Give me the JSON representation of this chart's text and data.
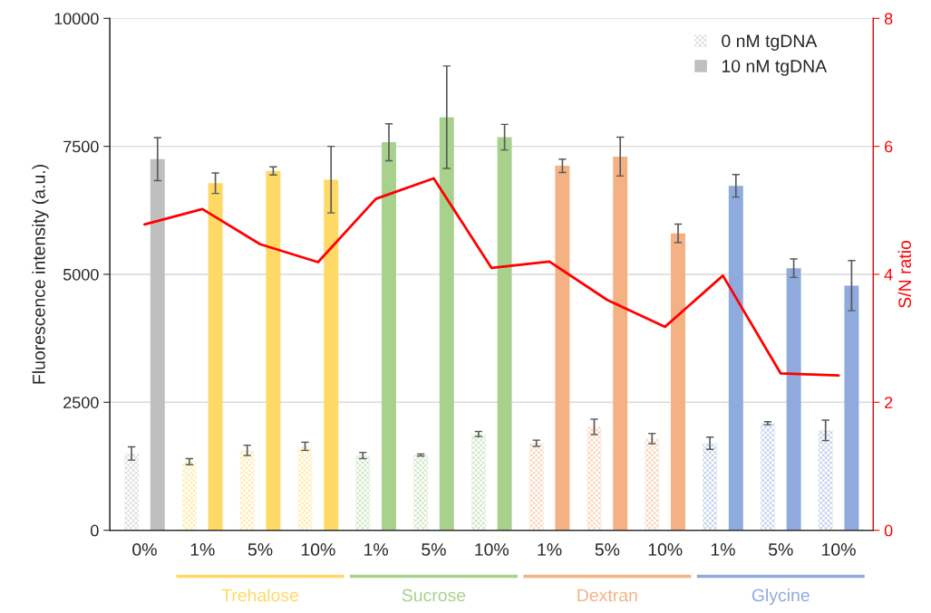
{
  "chart_data": {
    "type": "bar",
    "ylabel": "Fluorescence intensity (a.u.)",
    "y2label": "S/N ratio",
    "categories": [
      "0%",
      "1%",
      "5%",
      "10%",
      "1%",
      "5%",
      "10%",
      "1%",
      "5%",
      "10%",
      "1%",
      "5%",
      "10%"
    ],
    "series": [
      {
        "name": "0 nM tgDNA",
        "color": "#bfbfbf",
        "colors": [
          "#bfbfbf",
          "#ffd966",
          "#ffd966",
          "#ffd966",
          "#a9d18e",
          "#a9d18e",
          "#a9d18e",
          "#f4b183",
          "#f4b183",
          "#f4b183",
          "#8faadc",
          "#8faadc",
          "#8faadc"
        ],
        "values": [
          1500,
          1340,
          1560,
          1640,
          1460,
          1470,
          1880,
          1700,
          2020,
          1790,
          1700,
          2090,
          1950
        ],
        "errors": [
          130,
          60,
          100,
          80,
          60,
          20,
          50,
          60,
          150,
          100,
          120,
          30,
          200
        ]
      },
      {
        "name": "10 nM tgDNA",
        "color": "#bfbfbf",
        "colors": [
          "#bfbfbf",
          "#ffd966",
          "#ffd966",
          "#ffd966",
          "#a9d18e",
          "#a9d18e",
          "#a9d18e",
          "#f4b183",
          "#f4b183",
          "#f4b183",
          "#8faadc",
          "#8faadc",
          "#8faadc"
        ],
        "values": [
          7250,
          6780,
          7020,
          6850,
          7580,
          8070,
          7680,
          7120,
          7300,
          5800,
          6730,
          5120,
          4780
        ],
        "errors": [
          420,
          200,
          80,
          650,
          360,
          1000,
          250,
          130,
          380,
          180,
          220,
          180,
          490
        ]
      },
      {
        "type": "line",
        "axis": "y2",
        "color": "#ff0000",
        "values": [
          4.78,
          5.02,
          4.47,
          4.19,
          5.18,
          5.5,
          4.1,
          4.2,
          3.6,
          3.18,
          3.98,
          2.45,
          2.42
        ]
      }
    ],
    "ylim": [
      0,
      10000
    ],
    "yticks": [
      0,
      2500,
      5000,
      7500,
      10000
    ],
    "y2lim": [
      0,
      8
    ],
    "y2ticks": [
      0,
      2,
      4,
      6,
      8
    ],
    "grid": "y",
    "legend": "top right",
    "marker": "none",
    "line_style": "solid",
    "annotations": [
      "Trehalose",
      "Sucrose",
      "Dextran",
      "Glycine"
    ]
  }
}
